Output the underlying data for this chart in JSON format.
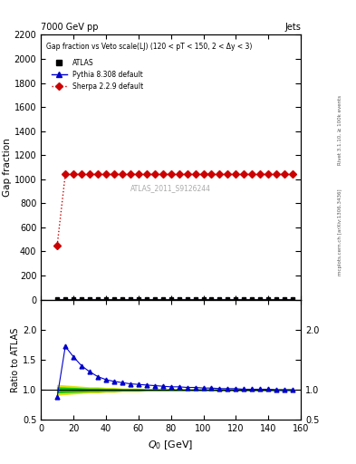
{
  "title_left": "7000 GeV pp",
  "title_right": "Jets",
  "plot_title": "Gap fraction vs Veto scale(LJ) (120 < pT < 150, 2 < Δy < 3)",
  "ylabel_main": "Gap fraction",
  "ylabel_ratio": "Ratio to ATLAS",
  "watermark": "ATLAS_2011_S9126244",
  "right_label_top": "Rivet 3.1.10, ≥ 100k events",
  "right_label_bot": "mcplots.cern.ch [arXiv:1306.3436]",
  "xlim": [
    0,
    160
  ],
  "ylim_main": [
    0,
    2200
  ],
  "ylim_ratio": [
    0.5,
    2.5
  ],
  "yticks_main": [
    0,
    200,
    400,
    600,
    800,
    1000,
    1200,
    1400,
    1600,
    1800,
    2000,
    2200
  ],
  "yticks_ratio": [
    0.5,
    1.0,
    1.5,
    2.0
  ],
  "atlas_x": [
    10,
    15,
    20,
    25,
    30,
    35,
    40,
    45,
    50,
    55,
    60,
    65,
    70,
    75,
    80,
    85,
    90,
    95,
    100,
    105,
    110,
    115,
    120,
    125,
    130,
    135,
    140,
    145,
    150,
    155
  ],
  "atlas_main_y": [
    2,
    2,
    2,
    2,
    2,
    2,
    2,
    2,
    2,
    2,
    2,
    2,
    2,
    2,
    2,
    2,
    2,
    2,
    2,
    2,
    2,
    2,
    2,
    2,
    2,
    2,
    2,
    2,
    2,
    2
  ],
  "atlas_main_yerr": [
    4,
    4,
    4,
    4,
    4,
    4,
    4,
    4,
    4,
    4,
    4,
    4,
    4,
    4,
    4,
    4,
    4,
    4,
    4,
    4,
    4,
    4,
    4,
    4,
    4,
    4,
    4,
    4,
    4,
    4
  ],
  "pythia_main_x": [
    10,
    15,
    20,
    25,
    30,
    35,
    40,
    45,
    50,
    55,
    60,
    65,
    70,
    75,
    80,
    85,
    90,
    95,
    100,
    105,
    110,
    115,
    120,
    125,
    130,
    135,
    140,
    145,
    150,
    155
  ],
  "pythia_main_y": [
    2,
    2,
    2,
    2,
    2,
    2,
    2,
    2,
    2,
    2,
    2,
    2,
    2,
    2,
    2,
    2,
    2,
    2,
    2,
    2,
    2,
    2,
    2,
    2,
    2,
    2,
    2,
    2,
    2,
    2
  ],
  "sherpa_x": [
    10,
    15,
    20,
    25,
    30,
    35,
    40,
    45,
    50,
    55,
    60,
    65,
    70,
    75,
    80,
    85,
    90,
    95,
    100,
    105,
    110,
    115,
    120,
    125,
    130,
    135,
    140,
    145,
    150,
    155
  ],
  "sherpa_y": [
    450,
    1040,
    1040,
    1040,
    1040,
    1040,
    1040,
    1040,
    1040,
    1040,
    1040,
    1040,
    1040,
    1040,
    1040,
    1040,
    1040,
    1040,
    1040,
    1040,
    1040,
    1040,
    1040,
    1040,
    1040,
    1040,
    1040,
    1040,
    1040,
    1040
  ],
  "ratio_pythia_x": [
    10,
    15,
    20,
    25,
    30,
    35,
    40,
    45,
    50,
    55,
    60,
    65,
    70,
    75,
    80,
    85,
    90,
    95,
    100,
    105,
    110,
    115,
    120,
    125,
    130,
    135,
    140,
    145,
    150,
    155
  ],
  "ratio_pythia_y": [
    0.88,
    1.72,
    1.55,
    1.4,
    1.3,
    1.22,
    1.17,
    1.14,
    1.12,
    1.1,
    1.09,
    1.08,
    1.07,
    1.06,
    1.05,
    1.05,
    1.04,
    1.04,
    1.03,
    1.03,
    1.02,
    1.02,
    1.02,
    1.01,
    1.01,
    1.01,
    1.01,
    1.0,
    1.0,
    1.0
  ],
  "band_x": [
    10,
    15,
    20,
    25,
    30,
    35,
    40,
    45,
    50,
    55,
    60,
    65,
    70,
    75,
    80,
    85,
    90,
    95,
    100,
    105,
    110,
    115,
    120,
    125,
    130,
    135,
    140,
    145,
    150,
    155
  ],
  "band_yhi_yellow": [
    1.08,
    1.07,
    1.06,
    1.05,
    1.04,
    1.04,
    1.03,
    1.03,
    1.02,
    1.02,
    1.02,
    1.01,
    1.01,
    1.01,
    1.01,
    1.01,
    1.01,
    1.01,
    1.01,
    1.01,
    1.01,
    1.01,
    1.01,
    1.01,
    1.01,
    1.01,
    1.01,
    1.01,
    1.01,
    1.01
  ],
  "band_ylo_yellow": [
    0.92,
    0.93,
    0.94,
    0.95,
    0.96,
    0.96,
    0.97,
    0.97,
    0.98,
    0.98,
    0.98,
    0.99,
    0.99,
    0.99,
    0.99,
    0.99,
    0.99,
    0.99,
    0.99,
    0.99,
    0.99,
    0.99,
    0.99,
    0.99,
    0.99,
    0.99,
    0.99,
    0.99,
    0.99,
    0.99
  ],
  "band_yhi_green": [
    1.04,
    1.035,
    1.03,
    1.025,
    1.02,
    1.02,
    1.015,
    1.015,
    1.01,
    1.01,
    1.01,
    1.005,
    1.005,
    1.005,
    1.005,
    1.005,
    1.005,
    1.005,
    1.005,
    1.005,
    1.005,
    1.005,
    1.005,
    1.005,
    1.005,
    1.005,
    1.005,
    1.005,
    1.005,
    1.005
  ],
  "band_ylo_green": [
    0.96,
    0.965,
    0.97,
    0.975,
    0.98,
    0.98,
    0.985,
    0.985,
    0.99,
    0.99,
    0.99,
    0.995,
    0.995,
    0.995,
    0.995,
    0.995,
    0.995,
    0.995,
    0.995,
    0.995,
    0.995,
    0.995,
    0.995,
    0.995,
    0.995,
    0.995,
    0.995,
    0.995,
    0.995,
    0.995
  ],
  "atlas_color": "#000000",
  "pythia_color": "#0000cc",
  "sherpa_color": "#cc0000",
  "green_color": "#00bb00",
  "yellow_color": "#dddd00",
  "background_color": "#ffffff"
}
